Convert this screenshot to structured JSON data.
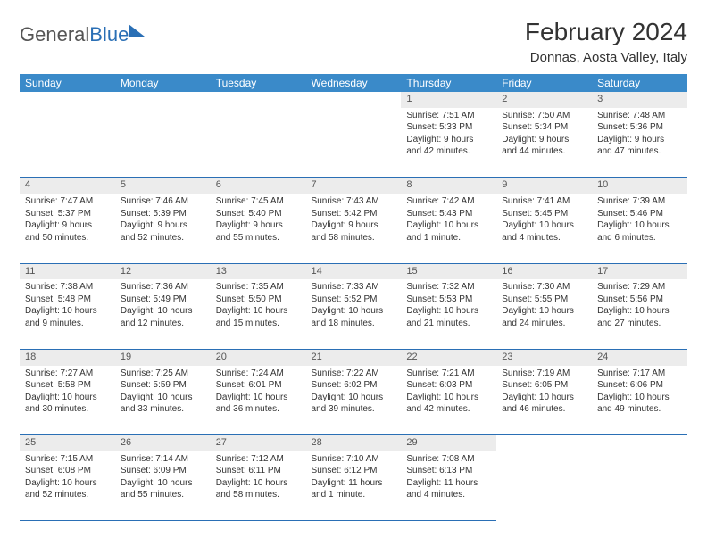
{
  "logo": {
    "word1": "General",
    "word2": "Blue"
  },
  "title": "February 2024",
  "location": "Donnas, Aosta Valley, Italy",
  "colors": {
    "header_bg": "#3a8ac9",
    "rule": "#2a6fb5",
    "daynum_bg": "#ececec"
  },
  "day_headers": [
    "Sunday",
    "Monday",
    "Tuesday",
    "Wednesday",
    "Thursday",
    "Friday",
    "Saturday"
  ],
  "weeks": [
    [
      null,
      null,
      null,
      null,
      {
        "n": "1",
        "sr": "Sunrise: 7:51 AM",
        "ss": "Sunset: 5:33 PM",
        "dl1": "Daylight: 9 hours",
        "dl2": "and 42 minutes."
      },
      {
        "n": "2",
        "sr": "Sunrise: 7:50 AM",
        "ss": "Sunset: 5:34 PM",
        "dl1": "Daylight: 9 hours",
        "dl2": "and 44 minutes."
      },
      {
        "n": "3",
        "sr": "Sunrise: 7:48 AM",
        "ss": "Sunset: 5:36 PM",
        "dl1": "Daylight: 9 hours",
        "dl2": "and 47 minutes."
      }
    ],
    [
      {
        "n": "4",
        "sr": "Sunrise: 7:47 AM",
        "ss": "Sunset: 5:37 PM",
        "dl1": "Daylight: 9 hours",
        "dl2": "and 50 minutes."
      },
      {
        "n": "5",
        "sr": "Sunrise: 7:46 AM",
        "ss": "Sunset: 5:39 PM",
        "dl1": "Daylight: 9 hours",
        "dl2": "and 52 minutes."
      },
      {
        "n": "6",
        "sr": "Sunrise: 7:45 AM",
        "ss": "Sunset: 5:40 PM",
        "dl1": "Daylight: 9 hours",
        "dl2": "and 55 minutes."
      },
      {
        "n": "7",
        "sr": "Sunrise: 7:43 AM",
        "ss": "Sunset: 5:42 PM",
        "dl1": "Daylight: 9 hours",
        "dl2": "and 58 minutes."
      },
      {
        "n": "8",
        "sr": "Sunrise: 7:42 AM",
        "ss": "Sunset: 5:43 PM",
        "dl1": "Daylight: 10 hours",
        "dl2": "and 1 minute."
      },
      {
        "n": "9",
        "sr": "Sunrise: 7:41 AM",
        "ss": "Sunset: 5:45 PM",
        "dl1": "Daylight: 10 hours",
        "dl2": "and 4 minutes."
      },
      {
        "n": "10",
        "sr": "Sunrise: 7:39 AM",
        "ss": "Sunset: 5:46 PM",
        "dl1": "Daylight: 10 hours",
        "dl2": "and 6 minutes."
      }
    ],
    [
      {
        "n": "11",
        "sr": "Sunrise: 7:38 AM",
        "ss": "Sunset: 5:48 PM",
        "dl1": "Daylight: 10 hours",
        "dl2": "and 9 minutes."
      },
      {
        "n": "12",
        "sr": "Sunrise: 7:36 AM",
        "ss": "Sunset: 5:49 PM",
        "dl1": "Daylight: 10 hours",
        "dl2": "and 12 minutes."
      },
      {
        "n": "13",
        "sr": "Sunrise: 7:35 AM",
        "ss": "Sunset: 5:50 PM",
        "dl1": "Daylight: 10 hours",
        "dl2": "and 15 minutes."
      },
      {
        "n": "14",
        "sr": "Sunrise: 7:33 AM",
        "ss": "Sunset: 5:52 PM",
        "dl1": "Daylight: 10 hours",
        "dl2": "and 18 minutes."
      },
      {
        "n": "15",
        "sr": "Sunrise: 7:32 AM",
        "ss": "Sunset: 5:53 PM",
        "dl1": "Daylight: 10 hours",
        "dl2": "and 21 minutes."
      },
      {
        "n": "16",
        "sr": "Sunrise: 7:30 AM",
        "ss": "Sunset: 5:55 PM",
        "dl1": "Daylight: 10 hours",
        "dl2": "and 24 minutes."
      },
      {
        "n": "17",
        "sr": "Sunrise: 7:29 AM",
        "ss": "Sunset: 5:56 PM",
        "dl1": "Daylight: 10 hours",
        "dl2": "and 27 minutes."
      }
    ],
    [
      {
        "n": "18",
        "sr": "Sunrise: 7:27 AM",
        "ss": "Sunset: 5:58 PM",
        "dl1": "Daylight: 10 hours",
        "dl2": "and 30 minutes."
      },
      {
        "n": "19",
        "sr": "Sunrise: 7:25 AM",
        "ss": "Sunset: 5:59 PM",
        "dl1": "Daylight: 10 hours",
        "dl2": "and 33 minutes."
      },
      {
        "n": "20",
        "sr": "Sunrise: 7:24 AM",
        "ss": "Sunset: 6:01 PM",
        "dl1": "Daylight: 10 hours",
        "dl2": "and 36 minutes."
      },
      {
        "n": "21",
        "sr": "Sunrise: 7:22 AM",
        "ss": "Sunset: 6:02 PM",
        "dl1": "Daylight: 10 hours",
        "dl2": "and 39 minutes."
      },
      {
        "n": "22",
        "sr": "Sunrise: 7:21 AM",
        "ss": "Sunset: 6:03 PM",
        "dl1": "Daylight: 10 hours",
        "dl2": "and 42 minutes."
      },
      {
        "n": "23",
        "sr": "Sunrise: 7:19 AM",
        "ss": "Sunset: 6:05 PM",
        "dl1": "Daylight: 10 hours",
        "dl2": "and 46 minutes."
      },
      {
        "n": "24",
        "sr": "Sunrise: 7:17 AM",
        "ss": "Sunset: 6:06 PM",
        "dl1": "Daylight: 10 hours",
        "dl2": "and 49 minutes."
      }
    ],
    [
      {
        "n": "25",
        "sr": "Sunrise: 7:15 AM",
        "ss": "Sunset: 6:08 PM",
        "dl1": "Daylight: 10 hours",
        "dl2": "and 52 minutes."
      },
      {
        "n": "26",
        "sr": "Sunrise: 7:14 AM",
        "ss": "Sunset: 6:09 PM",
        "dl1": "Daylight: 10 hours",
        "dl2": "and 55 minutes."
      },
      {
        "n": "27",
        "sr": "Sunrise: 7:12 AM",
        "ss": "Sunset: 6:11 PM",
        "dl1": "Daylight: 10 hours",
        "dl2": "and 58 minutes."
      },
      {
        "n": "28",
        "sr": "Sunrise: 7:10 AM",
        "ss": "Sunset: 6:12 PM",
        "dl1": "Daylight: 11 hours",
        "dl2": "and 1 minute."
      },
      {
        "n": "29",
        "sr": "Sunrise: 7:08 AM",
        "ss": "Sunset: 6:13 PM",
        "dl1": "Daylight: 11 hours",
        "dl2": "and 4 minutes."
      },
      null,
      null
    ]
  ]
}
